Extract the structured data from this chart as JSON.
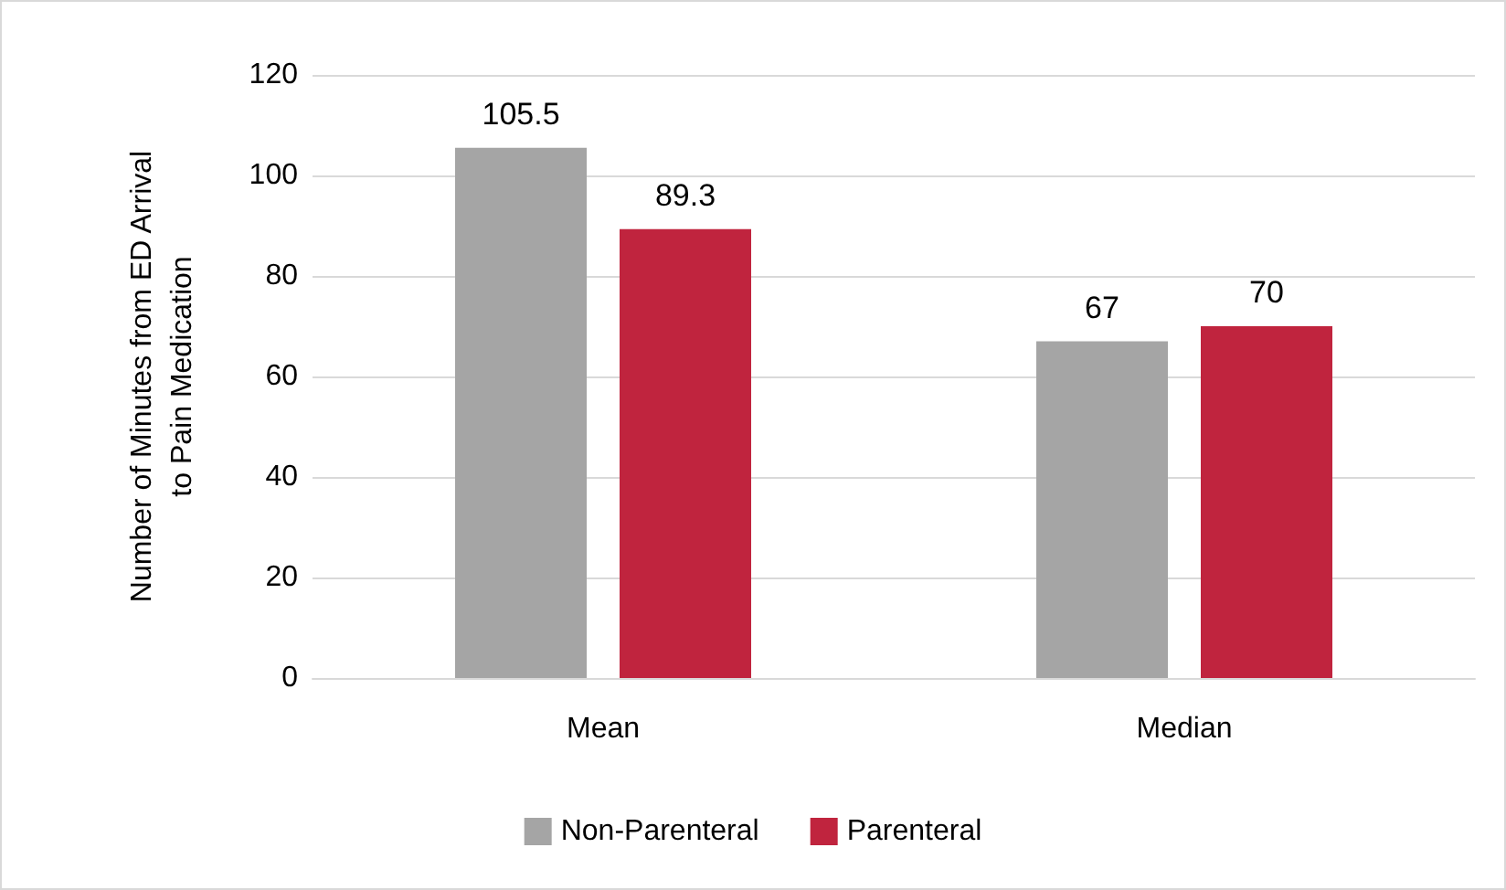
{
  "chart_data": {
    "type": "bar",
    "ylabel": "Number of Minutes from ED Arrival\nto Pain Medication",
    "categories": [
      "Mean",
      "Median"
    ],
    "series": [
      {
        "name": "Non-Parenteral",
        "color": "#a5a5a5",
        "values": [
          105.5,
          67
        ]
      },
      {
        "name": "Parenteral",
        "color": "#c0243e",
        "values": [
          89.3,
          70
        ]
      }
    ],
    "ylim": [
      0,
      120
    ],
    "yticks": [
      0,
      20,
      40,
      60,
      80,
      100,
      120
    ],
    "grid": "y",
    "legend": "bottom",
    "data_labels": true
  }
}
